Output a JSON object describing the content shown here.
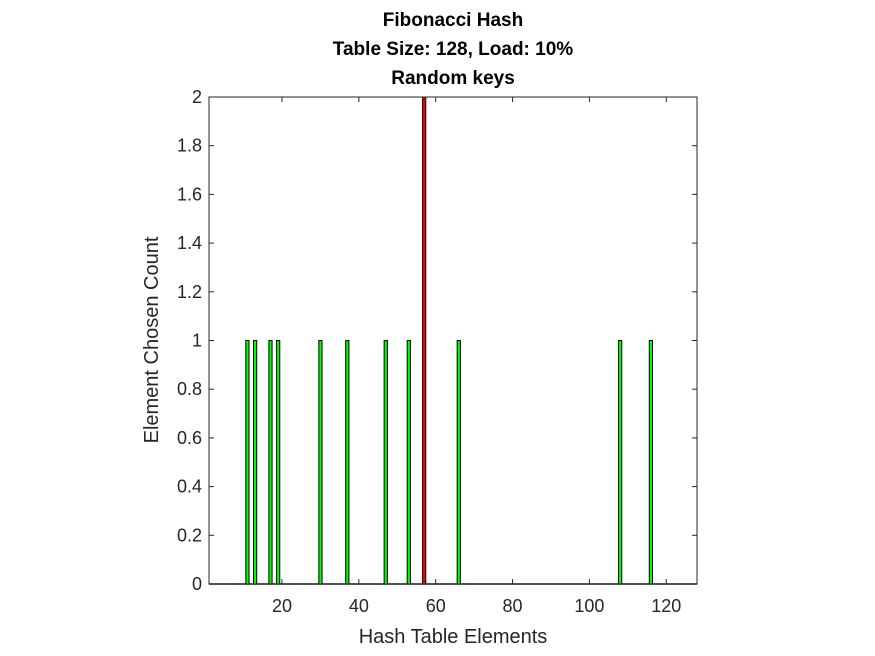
{
  "chart_data": {
    "type": "bar",
    "title": [
      "Fibonacci Hash",
      "Table Size: 128, Load: 10%",
      "Random keys"
    ],
    "xlabel": "Hash Table Elements",
    "ylabel": "Element Chosen Count",
    "xlim": [
      1,
      128
    ],
    "ylim": [
      0,
      2
    ],
    "x_ticks": [
      20,
      40,
      60,
      80,
      100,
      120
    ],
    "y_ticks": [
      0,
      0.2,
      0.4,
      0.6,
      0.8,
      1,
      1.2,
      1.4,
      1.6,
      1.8,
      2
    ],
    "y_tick_labels": [
      "0",
      "0.2",
      "0.4",
      "0.6",
      "0.8",
      "1",
      "1.2",
      "1.4",
      "1.6",
      "1.8",
      "2"
    ],
    "grid": false,
    "bars": [
      {
        "x": 11,
        "value": 1,
        "status": "single"
      },
      {
        "x": 13,
        "value": 1,
        "status": "single"
      },
      {
        "x": 17,
        "value": 1,
        "status": "single"
      },
      {
        "x": 19,
        "value": 1,
        "status": "single"
      },
      {
        "x": 30,
        "value": 1,
        "status": "single"
      },
      {
        "x": 37,
        "value": 1,
        "status": "single"
      },
      {
        "x": 47,
        "value": 1,
        "status": "single"
      },
      {
        "x": 53,
        "value": 1,
        "status": "single"
      },
      {
        "x": 57,
        "value": 2,
        "status": "collision"
      },
      {
        "x": 66,
        "value": 1,
        "status": "single"
      },
      {
        "x": 108,
        "value": 1,
        "status": "single"
      },
      {
        "x": 116,
        "value": 1,
        "status": "single"
      }
    ],
    "colors": {
      "single": "#00ff00",
      "collision": "#ff0000",
      "bar_edge": "#000000",
      "axis": "#262626"
    }
  }
}
